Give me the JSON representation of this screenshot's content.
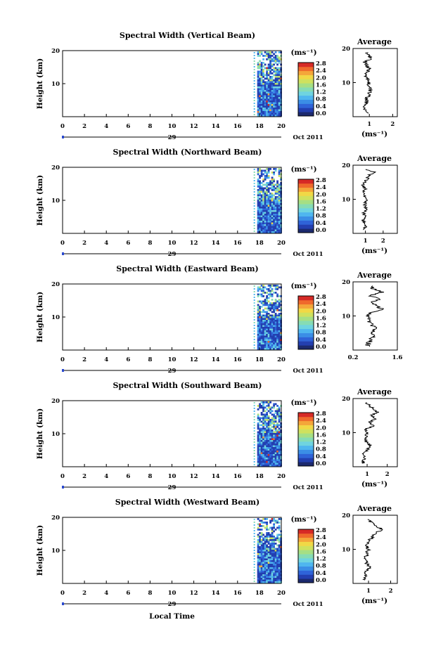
{
  "colors": {
    "scale": [
      "#1c2a6e",
      "#233fb0",
      "#2f63d8",
      "#3b8ee6",
      "#4fb6ef",
      "#6fd4e0",
      "#86dcb4",
      "#a6df84",
      "#cfe15e",
      "#f1d846",
      "#f4a63a",
      "#ef6a2c",
      "#d62a26"
    ],
    "missing": "#ffffff",
    "line": "#000000",
    "date_marker": "#2b4ad0"
  },
  "x_axis": {
    "ticks": [
      "0",
      "2",
      "4",
      "6",
      "8",
      "10",
      "12",
      "14",
      "16",
      "18",
      "20"
    ],
    "day_label": "29",
    "date_label": "Oct 2011",
    "xlabel": "Local Time"
  },
  "colorbar": {
    "unit": "(ms⁻¹)",
    "ticks": [
      "2.8",
      "2.4",
      "2.0",
      "1.6",
      "1.2",
      "0.8",
      "0.4",
      "0.0"
    ]
  },
  "chart_data": [
    {
      "type": "heatmap",
      "title": "Spectral Width (Vertical Beam)",
      "ylabel": "Height (km)",
      "yticks": [
        "20",
        "10"
      ],
      "ylim": [
        0,
        20
      ],
      "xlim": [
        0,
        20
      ],
      "data_x_range": [
        17.6,
        20
      ],
      "colorbar_range": [
        0,
        3
      ],
      "average": {
        "title": "Average",
        "xlabel": "(ms⁻¹)",
        "xticks": [
          "1",
          "2"
        ],
        "xlim": [
          0.3,
          2.2
        ],
        "heights": [
          1,
          2,
          3,
          4,
          5,
          6,
          7,
          8,
          9,
          10,
          11,
          12,
          13,
          14,
          15,
          16,
          17,
          18,
          19
        ],
        "values": [
          0.9,
          0.85,
          0.8,
          0.9,
          0.85,
          0.95,
          1.0,
          1.05,
          0.9,
          1.0,
          0.95,
          0.85,
          0.9,
          1.0,
          0.9,
          0.8,
          1.1,
          0.95,
          0.9
        ]
      }
    },
    {
      "type": "heatmap",
      "title": "Spectral Width (Northward Beam)",
      "ylabel": "Height (km)",
      "yticks": [
        "20",
        "10"
      ],
      "ylim": [
        0,
        20
      ],
      "xlim": [
        0,
        20
      ],
      "data_x_range": [
        17.6,
        20
      ],
      "colorbar_range": [
        0,
        3
      ],
      "average": {
        "title": "Average",
        "xlabel": "(ms⁻¹)",
        "xticks": [
          "1",
          "2"
        ],
        "xlim": [
          0.3,
          2.8
        ],
        "heights": [
          1,
          2,
          3,
          4,
          5,
          6,
          7,
          8,
          9,
          10,
          11,
          12,
          13,
          14,
          15,
          16,
          17,
          18,
          19
        ],
        "values": [
          0.9,
          1.0,
          0.95,
          0.85,
          1.0,
          0.9,
          1.05,
          0.95,
          1.0,
          1.1,
          0.95,
          0.9,
          1.0,
          0.85,
          0.95,
          1.1,
          1.2,
          1.5,
          0.9
        ]
      }
    },
    {
      "type": "heatmap",
      "title": "Spectral Width (Eastward Beam)",
      "ylabel": "Height (km)",
      "yticks": [
        "20",
        "10"
      ],
      "ylim": [
        0,
        20
      ],
      "xlim": [
        0,
        20
      ],
      "data_x_range": [
        17.6,
        20
      ],
      "colorbar_range": [
        0,
        3
      ],
      "average": {
        "title": "Average",
        "xlabel": "",
        "xticks": [
          "0.2",
          "1.6"
        ],
        "xlim": [
          0.2,
          1.6
        ],
        "heights": [
          1,
          2,
          3,
          4,
          5,
          6,
          7,
          8,
          9,
          10,
          11,
          12,
          13,
          14,
          15,
          16,
          17,
          18,
          19
        ],
        "values": [
          0.65,
          0.7,
          0.75,
          0.8,
          0.85,
          0.9,
          0.85,
          0.75,
          0.7,
          0.65,
          0.8,
          1.1,
          1.0,
          0.7,
          1.05,
          0.75,
          1.15,
          0.8,
          0.9
        ]
      }
    },
    {
      "type": "heatmap",
      "title": "Spectral Width (Southward Beam)",
      "ylabel": "Height (km)",
      "yticks": [
        "20",
        "10"
      ],
      "ylim": [
        0,
        20
      ],
      "xlim": [
        0,
        20
      ],
      "data_x_range": [
        17.6,
        20
      ],
      "colorbar_range": [
        0,
        3
      ],
      "average": {
        "title": "Average",
        "xlabel": "(ms⁻¹)",
        "xticks": [
          "1",
          "2"
        ],
        "xlim": [
          0.3,
          2.5
        ],
        "heights": [
          1,
          2,
          3,
          4,
          5,
          6,
          7,
          8,
          9,
          10,
          11,
          12,
          13,
          14,
          15,
          16,
          17,
          18,
          19
        ],
        "values": [
          0.8,
          0.85,
          0.9,
          0.85,
          1.0,
          1.2,
          1.0,
          0.9,
          0.95,
          1.05,
          0.9,
          1.3,
          1.1,
          1.4,
          1.2,
          1.5,
          1.3,
          1.1,
          0.9
        ]
      }
    },
    {
      "type": "heatmap",
      "title": "Spectral Width (Westward Beam)",
      "ylabel": "Height (km)",
      "yticks": [
        "20",
        "10"
      ],
      "ylim": [
        0,
        20
      ],
      "xlim": [
        0,
        20
      ],
      "data_x_range": [
        17.6,
        20
      ],
      "colorbar_range": [
        0,
        3
      ],
      "average": {
        "title": "Average",
        "xlabel": "(ms⁻¹)",
        "xticks": [
          "1",
          "2"
        ],
        "xlim": [
          0.3,
          2.3
        ],
        "heights": [
          1,
          2,
          3,
          4,
          5,
          6,
          7,
          8,
          9,
          10,
          11,
          12,
          13,
          14,
          15,
          16,
          17,
          18,
          19
        ],
        "values": [
          0.8,
          0.9,
          0.85,
          1.0,
          1.05,
          0.9,
          0.85,
          0.9,
          0.95,
          1.0,
          0.9,
          0.95,
          1.1,
          1.2,
          1.4,
          1.6,
          1.3,
          1.1,
          0.9
        ]
      }
    }
  ]
}
